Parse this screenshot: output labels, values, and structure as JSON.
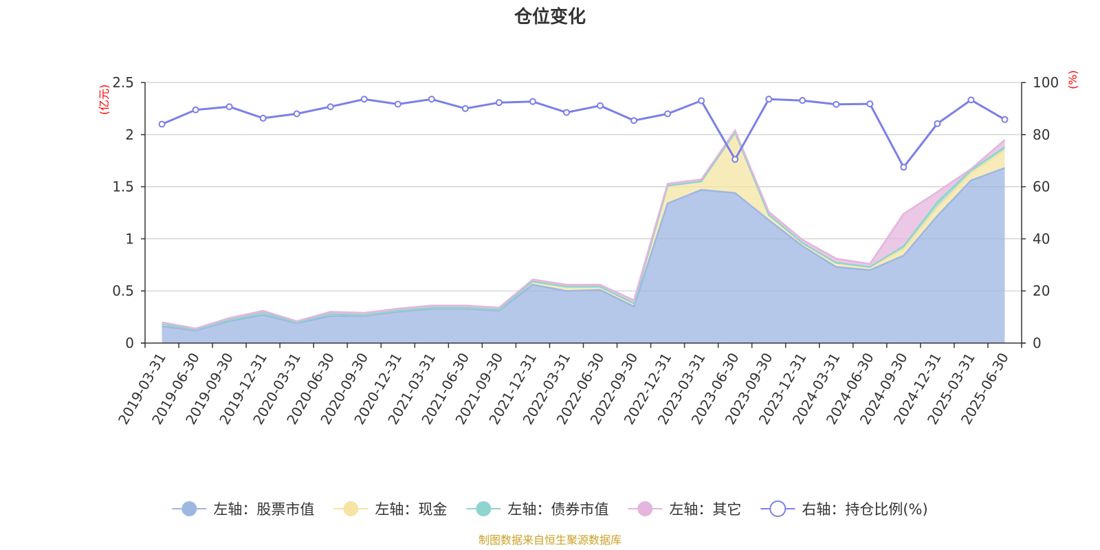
{
  "chart_data": {
    "type": "area",
    "title": "仓位变化",
    "ylabel_left": "(亿元)",
    "ylabel_right": "(%)",
    "ylim_left": [
      0,
      2.5
    ],
    "ylim_right": [
      0,
      100
    ],
    "yticks_left": [
      "0",
      "0.5",
      "1",
      "1.5",
      "2",
      "2.5"
    ],
    "yticks_right": [
      "0",
      "20",
      "40",
      "60",
      "80",
      "100"
    ],
    "grid": true,
    "legend_position": "bottom",
    "categories": [
      "2019-03-31",
      "2019-06-30",
      "2019-09-30",
      "2019-12-31",
      "2020-03-31",
      "2020-06-30",
      "2020-09-30",
      "2020-12-31",
      "2021-03-31",
      "2021-06-30",
      "2021-09-30",
      "2021-12-31",
      "2022-03-31",
      "2022-06-30",
      "2022-09-30",
      "2022-12-31",
      "2023-03-31",
      "2023-06-30",
      "2023-09-30",
      "2023-12-31",
      "2024-03-31",
      "2024-06-30",
      "2024-09-30",
      "2024-12-31",
      "2025-03-31",
      "2025-06-30"
    ],
    "series": [
      {
        "name": "左轴：股票市值",
        "axis": "left",
        "stacked": true,
        "color": "#9db6e2",
        "values": [
          0.16,
          0.12,
          0.21,
          0.27,
          0.19,
          0.26,
          0.26,
          0.3,
          0.33,
          0.33,
          0.31,
          0.56,
          0.5,
          0.51,
          0.35,
          1.34,
          1.47,
          1.44,
          1.18,
          0.93,
          0.73,
          0.7,
          0.84,
          1.22,
          1.56,
          1.68
        ]
      },
      {
        "name": "左轴：现金",
        "axis": "left",
        "stacked": true,
        "color": "#f5e4a3",
        "values": [
          0.02,
          0.01,
          0.01,
          0.02,
          0.01,
          0.02,
          0.01,
          0.01,
          0.01,
          0.01,
          0.01,
          0.03,
          0.04,
          0.03,
          0.03,
          0.17,
          0.08,
          0.58,
          0.05,
          0.03,
          0.04,
          0.03,
          0.06,
          0.08,
          0.07,
          0.17
        ]
      },
      {
        "name": "左轴：债券市值",
        "axis": "left",
        "stacked": true,
        "color": "#8fd4cf",
        "values": [
          0.0,
          0.0,
          0.0,
          0.0,
          0.0,
          0.0,
          0.0,
          0.0,
          0.0,
          0.0,
          0.0,
          0.0,
          0.0,
          0.0,
          0.0,
          0.0,
          0.0,
          0.0,
          0.0,
          0.0,
          0.0,
          0.0,
          0.03,
          0.05,
          0.03,
          0.03
        ]
      },
      {
        "name": "左轴：其它",
        "axis": "left",
        "stacked": true,
        "color": "#e4b5dd",
        "values": [
          0.02,
          0.01,
          0.02,
          0.02,
          0.01,
          0.02,
          0.02,
          0.02,
          0.02,
          0.02,
          0.02,
          0.02,
          0.02,
          0.02,
          0.03,
          0.02,
          0.02,
          0.02,
          0.03,
          0.03,
          0.04,
          0.03,
          0.31,
          0.1,
          0.01,
          0.07
        ]
      },
      {
        "name": "右轴：持仓比例(%)",
        "axis": "right",
        "stacked": false,
        "color": "#7b7fe8",
        "values": [
          84,
          89.5,
          90.7,
          86.3,
          88,
          90.7,
          93.6,
          91.7,
          93.6,
          90,
          92.3,
          92.7,
          88.5,
          91.1,
          85.4,
          88,
          93,
          70.5,
          93.6,
          93.1,
          91.6,
          91.8,
          67.5,
          84.2,
          93.3,
          85.8
        ]
      }
    ]
  },
  "source_note": "制图数据来自恒生聚源数据库"
}
